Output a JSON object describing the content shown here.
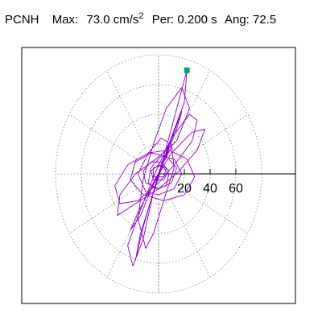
{
  "header": {
    "station": "PCNH",
    "max_label": "Max:",
    "max_value": "73.0",
    "max_unit": "cm/s",
    "max_unit_exp": "2",
    "per_label": "Per:",
    "per_value": "0.200 s",
    "ang_label": "Ang:",
    "ang_value": "72.5"
  },
  "colors": {
    "trace": "#8a00d4",
    "marker": "#009e73",
    "grid": "#808080",
    "axis": "#000000",
    "frame": "#000000"
  },
  "chart_data": {
    "type": "polar-particle-motion",
    "units": "cm/s^2",
    "radial_rings": [
      20,
      40,
      60,
      80
    ],
    "spoke_angles_deg": [
      0,
      30,
      60,
      90,
      120,
      150,
      180,
      210,
      240,
      270,
      300,
      330
    ],
    "x_tick_labels": [
      "20",
      "40",
      "60"
    ],
    "x_tick_values": [
      20,
      40,
      60
    ],
    "max_point": {
      "x": 22.0,
      "y": 69.6
    },
    "peak_angle_deg": 72.5,
    "peak_amplitude": 73.0,
    "trace_points": [
      [
        0,
        0
      ],
      [
        4,
        8
      ],
      [
        10,
        18
      ],
      [
        6,
        12
      ],
      [
        -2,
        -4
      ],
      [
        -8,
        -14
      ],
      [
        -4,
        -6
      ],
      [
        2,
        4
      ],
      [
        12,
        28
      ],
      [
        18,
        42
      ],
      [
        14,
        30
      ],
      [
        4,
        8
      ],
      [
        -6,
        -18
      ],
      [
        -14,
        -40
      ],
      [
        -18,
        -58
      ],
      [
        -12,
        -36
      ],
      [
        -2,
        -6
      ],
      [
        8,
        20
      ],
      [
        20,
        48
      ],
      [
        22,
        69.6
      ],
      [
        16,
        50
      ],
      [
        6,
        18
      ],
      [
        -4,
        -12
      ],
      [
        -12,
        -44
      ],
      [
        -20,
        -62
      ],
      [
        -24,
        -48
      ],
      [
        -14,
        -24
      ],
      [
        -2,
        2
      ],
      [
        10,
        24
      ],
      [
        24,
        40
      ],
      [
        30,
        36
      ],
      [
        26,
        22
      ],
      [
        14,
        8
      ],
      [
        0,
        -6
      ],
      [
        -16,
        -18
      ],
      [
        -30,
        -20
      ],
      [
        -34,
        -8
      ],
      [
        -24,
        6
      ],
      [
        -8,
        14
      ],
      [
        8,
        16
      ],
      [
        22,
        10
      ],
      [
        28,
        -2
      ],
      [
        20,
        -14
      ],
      [
        4,
        -18
      ],
      [
        -12,
        -14
      ],
      [
        -22,
        -4
      ],
      [
        -18,
        8
      ],
      [
        -6,
        14
      ],
      [
        6,
        12
      ],
      [
        14,
        4
      ],
      [
        10,
        -6
      ],
      [
        0,
        -10
      ],
      [
        -10,
        -6
      ],
      [
        -12,
        2
      ],
      [
        -6,
        8
      ],
      [
        2,
        8
      ],
      [
        8,
        2
      ],
      [
        4,
        -4
      ],
      [
        -4,
        -4
      ],
      [
        -6,
        2
      ],
      [
        0,
        6
      ],
      [
        6,
        4
      ],
      [
        4,
        -2
      ],
      [
        -2,
        -2
      ],
      [
        -14,
        -28
      ],
      [
        -22,
        -38
      ],
      [
        -16,
        -26
      ],
      [
        -4,
        -6
      ],
      [
        10,
        14
      ],
      [
        26,
        28
      ],
      [
        36,
        30
      ],
      [
        30,
        16
      ],
      [
        16,
        2
      ],
      [
        0,
        -10
      ],
      [
        -18,
        -20
      ],
      [
        -32,
        -28
      ],
      [
        -30,
        -14
      ],
      [
        -18,
        0
      ],
      [
        -2,
        10
      ],
      [
        14,
        22
      ],
      [
        24,
        44
      ],
      [
        18,
        58
      ],
      [
        6,
        44
      ],
      [
        -4,
        20
      ],
      [
        -12,
        -4
      ],
      [
        -16,
        -30
      ],
      [
        -10,
        -50
      ],
      [
        -4,
        -40
      ],
      [
        4,
        -18
      ],
      [
        12,
        4
      ],
      [
        10,
        20
      ],
      [
        2,
        24
      ],
      [
        -8,
        14
      ],
      [
        -16,
        0
      ],
      [
        -10,
        -12
      ],
      [
        0,
        -14
      ],
      [
        12,
        -10
      ],
      [
        18,
        0
      ],
      [
        12,
        10
      ],
      [
        2,
        12
      ],
      [
        -6,
        4
      ],
      [
        -8,
        -6
      ],
      [
        -2,
        -10
      ],
      [
        6,
        -8
      ],
      [
        8,
        0
      ],
      [
        2,
        6
      ],
      [
        -4,
        4
      ],
      [
        -4,
        -2
      ],
      [
        0,
        -2
      ],
      [
        0,
        0
      ]
    ]
  }
}
